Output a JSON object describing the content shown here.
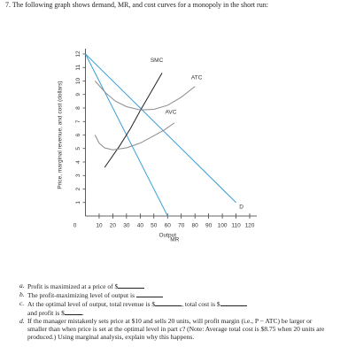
{
  "question": "7. The following graph shows demand, MR, and cost curves for a monopoly in the short run:",
  "graph": {
    "y_label": "Price, marginal revenue, and cost (dollars)",
    "x_label": "Output",
    "origin_label": "0",
    "xlim": [
      0,
      120
    ],
    "ylim": [
      0,
      12
    ],
    "xticks": [
      10,
      20,
      30,
      40,
      50,
      60,
      70,
      80,
      90,
      100,
      110,
      120
    ],
    "yticks": [
      1,
      2,
      3,
      4,
      5,
      6,
      7,
      8,
      9,
      10,
      11,
      12
    ],
    "curves": [
      {
        "name": "D",
        "color": "#3b9fd8",
        "x": [
          0,
          110
        ],
        "y": [
          12,
          1
        ]
      },
      {
        "name": "MR",
        "color": "#3b9fd8",
        "x": [
          0,
          60
        ],
        "y": [
          12,
          0
        ]
      },
      {
        "name": "SMC",
        "color": "#222222",
        "x": [
          14,
          25,
          33,
          40,
          48,
          56
        ],
        "y": [
          3.6,
          5.2,
          6.5,
          7.8,
          9.2,
          10.6
        ]
      },
      {
        "name": "ATC",
        "color": "#8c8c8c",
        "x": [
          7,
          15,
          22,
          30,
          40,
          50,
          60,
          70,
          80
        ],
        "y": [
          10,
          9.1,
          8.5,
          8.1,
          7.85,
          7.9,
          8.2,
          8.8,
          9.6
        ]
      },
      {
        "name": "AVC",
        "color": "#8c8c8c",
        "x": [
          7,
          10,
          14,
          20,
          30,
          40,
          50,
          58,
          65
        ],
        "y": [
          6,
          5.4,
          5.05,
          4.9,
          5.05,
          5.4,
          5.95,
          6.4,
          6.9
        ]
      }
    ]
  },
  "parts": [
    {
      "letter": "a.",
      "text": [
        "Profit is maximized at a price of $"
      ]
    },
    {
      "letter": "b.",
      "text": [
        "The profit-maximizing level of output is "
      ]
    },
    {
      "letter": "c.",
      "text": [
        "At the optimal level of output, total revenue is $",
        ", total cost is $",
        "and profit is $",
        "."
      ]
    },
    {
      "letter": "d.",
      "text": [
        "If the manager mistakenly sets price at $10 and sells 20 units, will profit margin (i.e., P − ATC) be larger or smaller than when price is set at the optimal level in part c? (Note: Average total cost is $8.75 when 20 units are produced.) Using marginal analysis, explain why this happens."
      ]
    }
  ]
}
